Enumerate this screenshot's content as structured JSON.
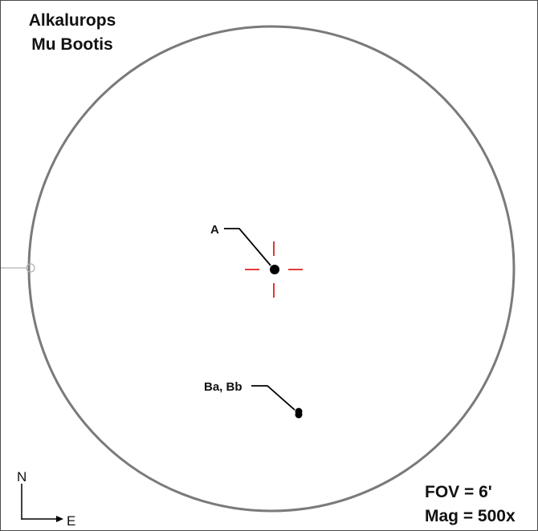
{
  "title": {
    "line1": "Alkalurops",
    "line2": "Mu Bootis"
  },
  "field": {
    "fov": "FOV = 6'",
    "magnification": "Mag = 500x"
  },
  "stars": [
    {
      "label": "A"
    },
    {
      "label": "Ba, Bb"
    }
  ],
  "compass": {
    "north": "N",
    "east": "E"
  },
  "colors": {
    "circle": "#7a7a7a",
    "crosshair": "#e02020",
    "star": "#000000",
    "frame": "#4a4a4a"
  }
}
